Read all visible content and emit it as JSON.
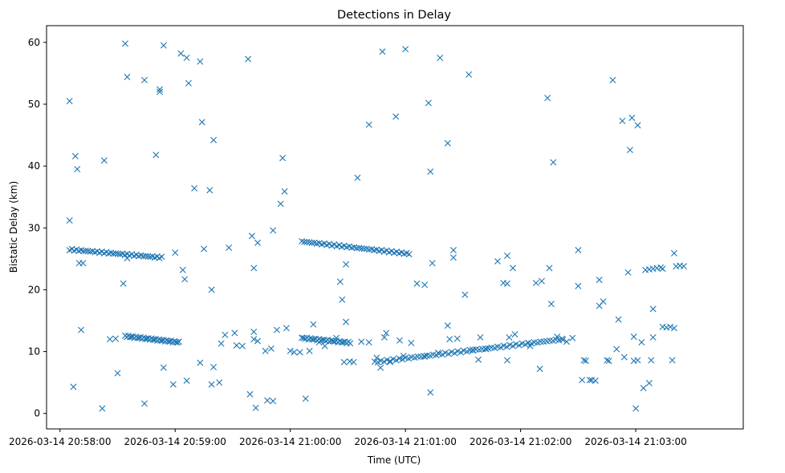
{
  "chart_data": {
    "type": "scatter",
    "title": "Detections in Delay",
    "xlabel": "Time (UTC)",
    "ylabel": "Bistatic Delay (km)",
    "x_unit": "seconds after 2026-03-14 20:58:00",
    "xlim": [
      -7,
      356
    ],
    "ylim": [
      -2.5,
      62.7
    ],
    "x_ticks": [
      {
        "t": 0,
        "label": "2026-03-14 20:58:00"
      },
      {
        "t": 60,
        "label": "2026-03-14 20:59:00"
      },
      {
        "t": 120,
        "label": "2026-03-14 21:00:00"
      },
      {
        "t": 180,
        "label": "2026-03-14 21:01:00"
      },
      {
        "t": 240,
        "label": "2026-03-14 21:02:00"
      },
      {
        "t": 300,
        "label": "2026-03-14 21:03:00"
      }
    ],
    "y_ticks": [
      0,
      10,
      20,
      30,
      40,
      50,
      60
    ],
    "marker": "x",
    "color": "#1f77b4",
    "tracks": [
      {
        "name": "track-upper-a",
        "t_start": 5,
        "t_end": 53,
        "y_start": 26.5,
        "y_end": 25.2,
        "step": 1.2
      },
      {
        "name": "track-lower-a",
        "t_start": 34,
        "t_end": 62,
        "y_start": 12.5,
        "y_end": 11.5,
        "step": 0.8
      },
      {
        "name": "track-upper-b",
        "t_start": 126,
        "t_end": 182,
        "y_start": 27.8,
        "y_end": 25.8,
        "step": 1.3
      },
      {
        "name": "track-lower-b",
        "t_start": 126,
        "t_end": 152,
        "y_start": 12.2,
        "y_end": 11.4,
        "step": 0.9
      },
      {
        "name": "track-lower-c",
        "t_start": 164,
        "t_end": 262,
        "y_start": 8.3,
        "y_end": 12.0,
        "step": 1.6
      }
    ],
    "points": [
      [
        5,
        50.5
      ],
      [
        5,
        31.2
      ],
      [
        7,
        4.3
      ],
      [
        8,
        41.6
      ],
      [
        9,
        39.5
      ],
      [
        11,
        13.5
      ],
      [
        12,
        24.3
      ],
      [
        10,
        24.3
      ],
      [
        22,
        0.8
      ],
      [
        23,
        40.9
      ],
      [
        26,
        12.0
      ],
      [
        29,
        12.1
      ],
      [
        30,
        6.5
      ],
      [
        33,
        21.0
      ],
      [
        34,
        59.8
      ],
      [
        35,
        54.4
      ],
      [
        35,
        25.1
      ],
      [
        44,
        53.9
      ],
      [
        44,
        1.6
      ],
      [
        50,
        41.8
      ],
      [
        52,
        52.0
      ],
      [
        52,
        52.4
      ],
      [
        54,
        7.4
      ],
      [
        54,
        59.5
      ],
      [
        59,
        4.7
      ],
      [
        60,
        26.0
      ],
      [
        63,
        58.2
      ],
      [
        64,
        23.2
      ],
      [
        65,
        21.7
      ],
      [
        66,
        57.5
      ],
      [
        66,
        5.3
      ],
      [
        67,
        53.4
      ],
      [
        70,
        36.4
      ],
      [
        73,
        56.9
      ],
      [
        74,
        47.1
      ],
      [
        73,
        8.2
      ],
      [
        75,
        26.6
      ],
      [
        78,
        36.1
      ],
      [
        79,
        4.7
      ],
      [
        79,
        20.0
      ],
      [
        80,
        44.2
      ],
      [
        80,
        7.5
      ],
      [
        83,
        5.0
      ],
      [
        84,
        11.3
      ],
      [
        86,
        12.7
      ],
      [
        88,
        26.8
      ],
      [
        91,
        13.0
      ],
      [
        92,
        11.0
      ],
      [
        95,
        10.9
      ],
      [
        98,
        57.3
      ],
      [
        99,
        3.1
      ],
      [
        100,
        28.7
      ],
      [
        101,
        23.5
      ],
      [
        101,
        12.0
      ],
      [
        101,
        13.2
      ],
      [
        102,
        0.9
      ],
      [
        103,
        27.6
      ],
      [
        103,
        11.7
      ],
      [
        107,
        10.1
      ],
      [
        108,
        2.1
      ],
      [
        110,
        10.5
      ],
      [
        111,
        2.0
      ],
      [
        111,
        29.6
      ],
      [
        113,
        13.5
      ],
      [
        115,
        33.9
      ],
      [
        116,
        41.3
      ],
      [
        117,
        35.9
      ],
      [
        118,
        13.8
      ],
      [
        120,
        10.1
      ],
      [
        122,
        9.9
      ],
      [
        125,
        9.9
      ],
      [
        128,
        2.4
      ],
      [
        130,
        10.1
      ],
      [
        132,
        14.4
      ],
      [
        135,
        11.5
      ],
      [
        138,
        10.9
      ],
      [
        144,
        12.2
      ],
      [
        146,
        21.3
      ],
      [
        147,
        18.4
      ],
      [
        148,
        8.3
      ],
      [
        149,
        14.8
      ],
      [
        149,
        24.1
      ],
      [
        151,
        8.4
      ],
      [
        153,
        8.3
      ],
      [
        155,
        38.1
      ],
      [
        157,
        11.6
      ],
      [
        161,
        46.7
      ],
      [
        161,
        11.5
      ],
      [
        165,
        9.0
      ],
      [
        167,
        7.4
      ],
      [
        168,
        58.5
      ],
      [
        169,
        12.3
      ],
      [
        170,
        13.0
      ],
      [
        172,
        8.3
      ],
      [
        175,
        48.0
      ],
      [
        177,
        11.8
      ],
      [
        180,
        58.9
      ],
      [
        179,
        9.3
      ],
      [
        183,
        11.4
      ],
      [
        186,
        21.0
      ],
      [
        190,
        20.8
      ],
      [
        190,
        9.2
      ],
      [
        192,
        50.2
      ],
      [
        193,
        39.1
      ],
      [
        193,
        3.4
      ],
      [
        194,
        24.3
      ],
      [
        197,
        9.8
      ],
      [
        198,
        57.5
      ],
      [
        202,
        43.7
      ],
      [
        202,
        14.2
      ],
      [
        203,
        12.0
      ],
      [
        205,
        26.4
      ],
      [
        205,
        25.2
      ],
      [
        207,
        12.1
      ],
      [
        211,
        19.2
      ],
      [
        213,
        54.8
      ],
      [
        215,
        10.3
      ],
      [
        218,
        8.7
      ],
      [
        219,
        12.3
      ],
      [
        222,
        10.4
      ],
      [
        228,
        24.6
      ],
      [
        231,
        21.1
      ],
      [
        233,
        21.0
      ],
      [
        233,
        25.5
      ],
      [
        234,
        12.3
      ],
      [
        233,
        8.6
      ],
      [
        236,
        23.5
      ],
      [
        237,
        12.8
      ],
      [
        245,
        10.9
      ],
      [
        248,
        21.1
      ],
      [
        250,
        7.2
      ],
      [
        251,
        21.4
      ],
      [
        254,
        51.0
      ],
      [
        255,
        23.5
      ],
      [
        256,
        17.7
      ],
      [
        257,
        40.6
      ],
      [
        259,
        12.4
      ],
      [
        262,
        11.9
      ],
      [
        264,
        11.6
      ],
      [
        267,
        12.2
      ],
      [
        270,
        20.6
      ],
      [
        270,
        26.4
      ],
      [
        272,
        5.4
      ],
      [
        273,
        8.6
      ],
      [
        274,
        8.5
      ],
      [
        276,
        5.4
      ],
      [
        277,
        5.4
      ],
      [
        279,
        5.3
      ],
      [
        281,
        17.4
      ],
      [
        281,
        21.6
      ],
      [
        283,
        18.1
      ],
      [
        285,
        8.6
      ],
      [
        286,
        8.5
      ],
      [
        288,
        53.9
      ],
      [
        290,
        10.4
      ],
      [
        291,
        15.2
      ],
      [
        293,
        47.3
      ],
      [
        294,
        9.1
      ],
      [
        296,
        22.8
      ],
      [
        298,
        47.8
      ],
      [
        297,
        42.6
      ],
      [
        299,
        8.5
      ],
      [
        299,
        12.4
      ],
      [
        300,
        0.8
      ],
      [
        301,
        46.6
      ],
      [
        301,
        8.6
      ],
      [
        303,
        11.5
      ],
      [
        304,
        4.1
      ],
      [
        305,
        23.2
      ],
      [
        307,
        23.3
      ],
      [
        307,
        4.9
      ],
      [
        309,
        12.3
      ],
      [
        309,
        16.9
      ],
      [
        308,
        8.6
      ],
      [
        309,
        23.4
      ],
      [
        311,
        23.5
      ],
      [
        313,
        23.6
      ],
      [
        314,
        23.4
      ],
      [
        316,
        13.9
      ],
      [
        318,
        14.0
      ],
      [
        319,
        8.6
      ],
      [
        320,
        25.9
      ],
      [
        320,
        13.8
      ],
      [
        321,
        23.8
      ],
      [
        323,
        23.9
      ],
      [
        325,
        23.8
      ],
      [
        314,
        14.0
      ]
    ]
  }
}
